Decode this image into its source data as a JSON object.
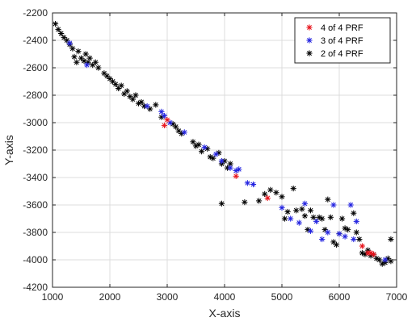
{
  "chart_data": {
    "type": "scatter",
    "title": "",
    "xlabel": "X-axis",
    "ylabel": "Y-axis",
    "xlim": [
      1000,
      7000
    ],
    "ylim": [
      -4200,
      -2200
    ],
    "xticks": [
      1000,
      2000,
      3000,
      4000,
      5000,
      6000,
      7000
    ],
    "yticks": [
      -2200,
      -2400,
      -2600,
      -2800,
      -3000,
      -3200,
      -3400,
      -3600,
      -3800,
      -4000,
      -4200
    ],
    "grid": true,
    "legend_position": "top-right",
    "marker": "asterisk",
    "series": [
      {
        "name": "4 of 4 PRF",
        "color": "#e8141c",
        "points": [
          [
            2950,
            -3020
          ],
          [
            3000,
            -2980
          ],
          [
            4200,
            -3390
          ],
          [
            4750,
            -3550
          ],
          [
            6400,
            -3900
          ],
          [
            6500,
            -3950
          ],
          [
            6550,
            -3950
          ],
          [
            6600,
            -3960
          ]
        ]
      },
      {
        "name": "3 of 4 PRF",
        "color": "#2323e0",
        "points": [
          [
            1300,
            -2420
          ],
          [
            1600,
            -2580
          ],
          [
            2650,
            -2880
          ],
          [
            2900,
            -2920
          ],
          [
            2950,
            -2950
          ],
          [
            3050,
            -3000
          ],
          [
            3300,
            -3070
          ],
          [
            3650,
            -3180
          ],
          [
            3850,
            -3230
          ],
          [
            3950,
            -3280
          ],
          [
            4100,
            -3330
          ],
          [
            4200,
            -3350
          ],
          [
            4250,
            -3340
          ],
          [
            4400,
            -3440
          ],
          [
            4500,
            -3450
          ],
          [
            5000,
            -3620
          ],
          [
            5150,
            -3700
          ],
          [
            5300,
            -3730
          ],
          [
            5400,
            -3590
          ],
          [
            5500,
            -3790
          ],
          [
            5600,
            -3720
          ],
          [
            5700,
            -3850
          ],
          [
            5800,
            -3800
          ],
          [
            5900,
            -3600
          ],
          [
            6000,
            -3810
          ],
          [
            6100,
            -3830
          ],
          [
            6200,
            -3600
          ],
          [
            6250,
            -3850
          ],
          [
            6300,
            -3720
          ],
          [
            6800,
            -4000
          ]
        ]
      },
      {
        "name": "2 of 4 PRF",
        "color": "#000000",
        "points": [
          [
            1050,
            -2280
          ],
          [
            1100,
            -2320
          ],
          [
            1150,
            -2350
          ],
          [
            1200,
            -2380
          ],
          [
            1250,
            -2400
          ],
          [
            1300,
            -2430
          ],
          [
            1350,
            -2460
          ],
          [
            1380,
            -2520
          ],
          [
            1420,
            -2560
          ],
          [
            1450,
            -2480
          ],
          [
            1500,
            -2530
          ],
          [
            1550,
            -2550
          ],
          [
            1580,
            -2500
          ],
          [
            1620,
            -2560
          ],
          [
            1650,
            -2530
          ],
          [
            1700,
            -2580
          ],
          [
            1750,
            -2560
          ],
          [
            1800,
            -2600
          ],
          [
            1900,
            -2640
          ],
          [
            1950,
            -2660
          ],
          [
            2000,
            -2680
          ],
          [
            2050,
            -2700
          ],
          [
            2100,
            -2720
          ],
          [
            2150,
            -2750
          ],
          [
            2200,
            -2730
          ],
          [
            2250,
            -2790
          ],
          [
            2300,
            -2770
          ],
          [
            2350,
            -2810
          ],
          [
            2400,
            -2830
          ],
          [
            2450,
            -2800
          ],
          [
            2500,
            -2860
          ],
          [
            2550,
            -2850
          ],
          [
            2600,
            -2880
          ],
          [
            2700,
            -2900
          ],
          [
            2800,
            -2870
          ],
          [
            2900,
            -2960
          ],
          [
            3100,
            -3010
          ],
          [
            3150,
            -3030
          ],
          [
            3200,
            -3060
          ],
          [
            3250,
            -3080
          ],
          [
            3450,
            -3140
          ],
          [
            3500,
            -3170
          ],
          [
            3550,
            -3160
          ],
          [
            3600,
            -3210
          ],
          [
            3700,
            -3190
          ],
          [
            3750,
            -3250
          ],
          [
            3800,
            -3260
          ],
          [
            3900,
            -3220
          ],
          [
            3950,
            -3300
          ],
          [
            4000,
            -3280
          ],
          [
            4050,
            -3330
          ],
          [
            4100,
            -3300
          ],
          [
            3950,
            -3590
          ],
          [
            4350,
            -3580
          ],
          [
            4600,
            -3570
          ],
          [
            4700,
            -3520
          ],
          [
            4800,
            -3490
          ],
          [
            4900,
            -3510
          ],
          [
            5000,
            -3540
          ],
          [
            5050,
            -3700
          ],
          [
            5100,
            -3650
          ],
          [
            5200,
            -3480
          ],
          [
            5250,
            -3640
          ],
          [
            5350,
            -3630
          ],
          [
            5400,
            -3680
          ],
          [
            5450,
            -3780
          ],
          [
            5500,
            -3640
          ],
          [
            5550,
            -3690
          ],
          [
            5650,
            -3690
          ],
          [
            5700,
            -3700
          ],
          [
            5750,
            -3780
          ],
          [
            5800,
            -3560
          ],
          [
            5850,
            -3690
          ],
          [
            5900,
            -3870
          ],
          [
            5950,
            -3890
          ],
          [
            6000,
            -3810
          ],
          [
            6050,
            -3700
          ],
          [
            6100,
            -3770
          ],
          [
            6150,
            -3780
          ],
          [
            6250,
            -3660
          ],
          [
            6300,
            -3800
          ],
          [
            6350,
            -3850
          ],
          [
            6400,
            -3950
          ],
          [
            6450,
            -3960
          ],
          [
            6500,
            -3930
          ],
          [
            6550,
            -3970
          ],
          [
            6600,
            -3960
          ],
          [
            6650,
            -3990
          ],
          [
            6700,
            -4000
          ],
          [
            6750,
            -4030
          ],
          [
            6800,
            -4020
          ],
          [
            6850,
            -3990
          ],
          [
            6900,
            -3850
          ],
          [
            6900,
            -4010
          ]
        ]
      }
    ]
  }
}
